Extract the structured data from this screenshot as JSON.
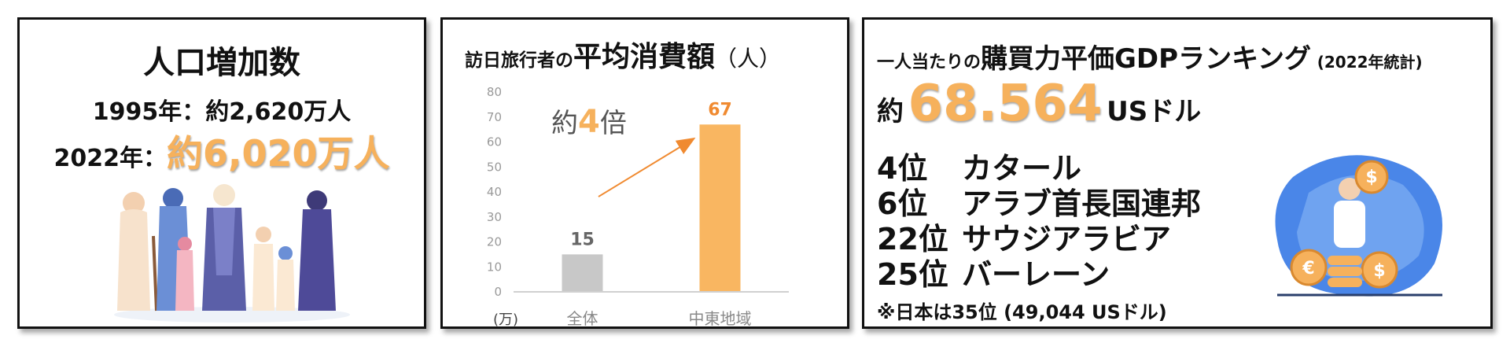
{
  "panel1": {
    "title": "人口増加数",
    "line1_year": "1995年：",
    "line1_value": "約2,620万人",
    "line2_year": "2022年：",
    "line2_value": "約6,020万人"
  },
  "panel2": {
    "title_pre": "訪日旅行者の",
    "title_em": "平均消費額",
    "title_unit": "（人）",
    "annotation_pre": "約",
    "annotation_num": "4",
    "annotation_post": "倍"
  },
  "chart_data": {
    "type": "bar",
    "categories": [
      "全体",
      "中東地域"
    ],
    "values": [
      15,
      67
    ],
    "bar_colors": [
      "#c8c8c8",
      "#f9b661"
    ],
    "label_colors": [
      "#666666",
      "#f08a30"
    ],
    "ylim": [
      0,
      80
    ],
    "yticks": [
      0,
      10,
      20,
      30,
      40,
      50,
      60,
      70,
      80
    ],
    "ylabel": "(万)",
    "grid": false
  },
  "panel3": {
    "title_pre": "一人当たりの",
    "title_em": "購買力平価GDPランキング",
    "title_year": "(2022年統計)",
    "gdp_pre": "約",
    "gdp_value": "68.564",
    "gdp_unit": "USドル",
    "ranks": [
      {
        "pos": "4位",
        "country": "カタール"
      },
      {
        "pos": "6位",
        "country": "アラブ首長国連邦"
      },
      {
        "pos": "22位",
        "country": "サウジアラビア"
      },
      {
        "pos": "25位",
        "country": "バーレーン"
      }
    ],
    "note": "※日本は35位 (49,044 USドル)"
  },
  "colors": {
    "accent": "#f6b15c",
    "border": "#111111"
  }
}
